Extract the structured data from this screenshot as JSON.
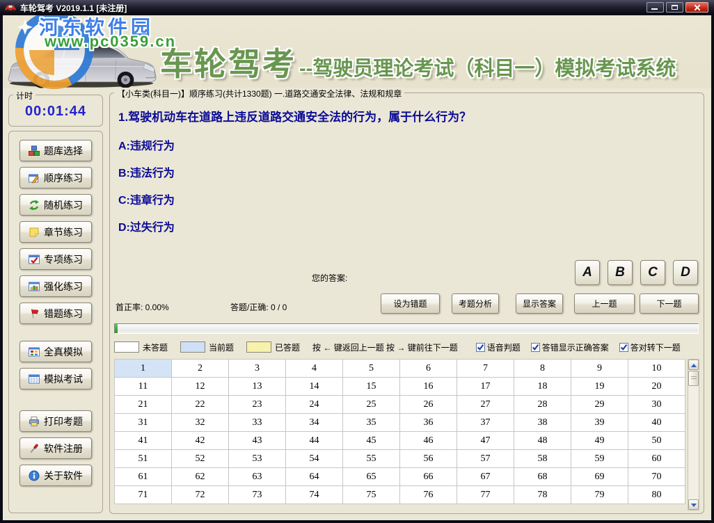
{
  "window": {
    "title": "车轮驾考 V2019.1.1 [未注册]"
  },
  "banner": {
    "watermark_site": "河东软件园",
    "watermark_url": "www.pc0359.cn",
    "title": "车轮驾考",
    "subtitle": "--驾驶员理论考试（科目一）模拟考试系统"
  },
  "sidebar": {
    "timer": {
      "label": "计时",
      "value": "00:01:44"
    },
    "button_groups": [
      [
        {
          "name": "question-bank",
          "icon": "cubes-icon",
          "label": "题库选择"
        },
        {
          "name": "sequential-practice",
          "icon": "pencil-icon",
          "label": "顺序练习"
        },
        {
          "name": "random-practice",
          "icon": "shuffle-icon",
          "label": "随机练习"
        },
        {
          "name": "chapter-practice",
          "icon": "note-icon",
          "label": "章节练习"
        },
        {
          "name": "special-practice",
          "icon": "check-window-icon",
          "label": "专项练习"
        },
        {
          "name": "intensive-practice",
          "icon": "chart-icon",
          "label": "强化练习"
        },
        {
          "name": "wrong-question-practice",
          "icon": "flag-icon",
          "label": "错题练习"
        }
      ],
      [
        {
          "name": "full-simulation",
          "icon": "grid-icon",
          "label": "全真模拟"
        },
        {
          "name": "mock-exam",
          "icon": "calendar-icon",
          "label": "模拟考试"
        }
      ],
      [
        {
          "name": "print-questions",
          "icon": "printer-icon",
          "label": "打印考题"
        },
        {
          "name": "software-register",
          "icon": "screwdriver-icon",
          "label": "软件注册"
        },
        {
          "name": "about-software",
          "icon": "info-icon",
          "label": "关于软件"
        }
      ]
    ]
  },
  "main": {
    "group_title": "【小车类(科目一)】顺序练习(共计1330题) 一.道路交通安全法律、法规和规章",
    "question": "1.驾驶机动车在道路上违反道路交通安全法的行为，属于什么行为？",
    "options": [
      "A:违规行为",
      "B:违法行为",
      "C:违章行为",
      "D:过失行为"
    ],
    "your_answer_label": "您的答案:",
    "answer_buttons": [
      "A",
      "B",
      "C",
      "D"
    ],
    "first_rate": "首正率: 0.00%",
    "answered": "答题/正确: 0 / 0",
    "action_buttons": [
      {
        "name": "mark-wrong",
        "label": "设为错题"
      },
      {
        "name": "question-analysis",
        "label": "考题分析"
      },
      {
        "name": "show-answer",
        "label": "显示答案"
      },
      {
        "name": "prev-question",
        "label": "上一题"
      },
      {
        "name": "next-question",
        "label": "下一题"
      }
    ],
    "progress_percent": 0.5,
    "progress_color": "#2e8f2e",
    "legend": [
      {
        "label": "未答题",
        "color": "#FFFFFF"
      },
      {
        "label": "当前题",
        "color": "#CFE0F6"
      },
      {
        "label": "已答题",
        "color": "#F8F1AC"
      }
    ],
    "keyboard_hint": "按 ← 键返回上一题  按 → 键前往下一题",
    "checkboxes": [
      {
        "name": "voice-judge",
        "label": "语音判题",
        "checked": true
      },
      {
        "name": "show-correct-on-wrong",
        "label": "答错显示正确答案",
        "checked": true
      },
      {
        "name": "auto-next-on-correct",
        "label": "答对转下一题",
        "checked": true
      }
    ],
    "grid": {
      "current": 1,
      "numbers": [
        1,
        2,
        3,
        4,
        5,
        6,
        7,
        8,
        9,
        10,
        11,
        12,
        13,
        14,
        15,
        16,
        17,
        18,
        19,
        20,
        21,
        22,
        23,
        24,
        25,
        26,
        27,
        28,
        29,
        30,
        31,
        32,
        33,
        34,
        35,
        36,
        37,
        38,
        39,
        40,
        41,
        42,
        43,
        44,
        45,
        46,
        47,
        48,
        49,
        50,
        51,
        52,
        53,
        54,
        55,
        56,
        57,
        58,
        59,
        60,
        61,
        62,
        63,
        64,
        65,
        66,
        67,
        68,
        69,
        70,
        71,
        72,
        73,
        74,
        75,
        76,
        77,
        78,
        79,
        80
      ]
    }
  }
}
